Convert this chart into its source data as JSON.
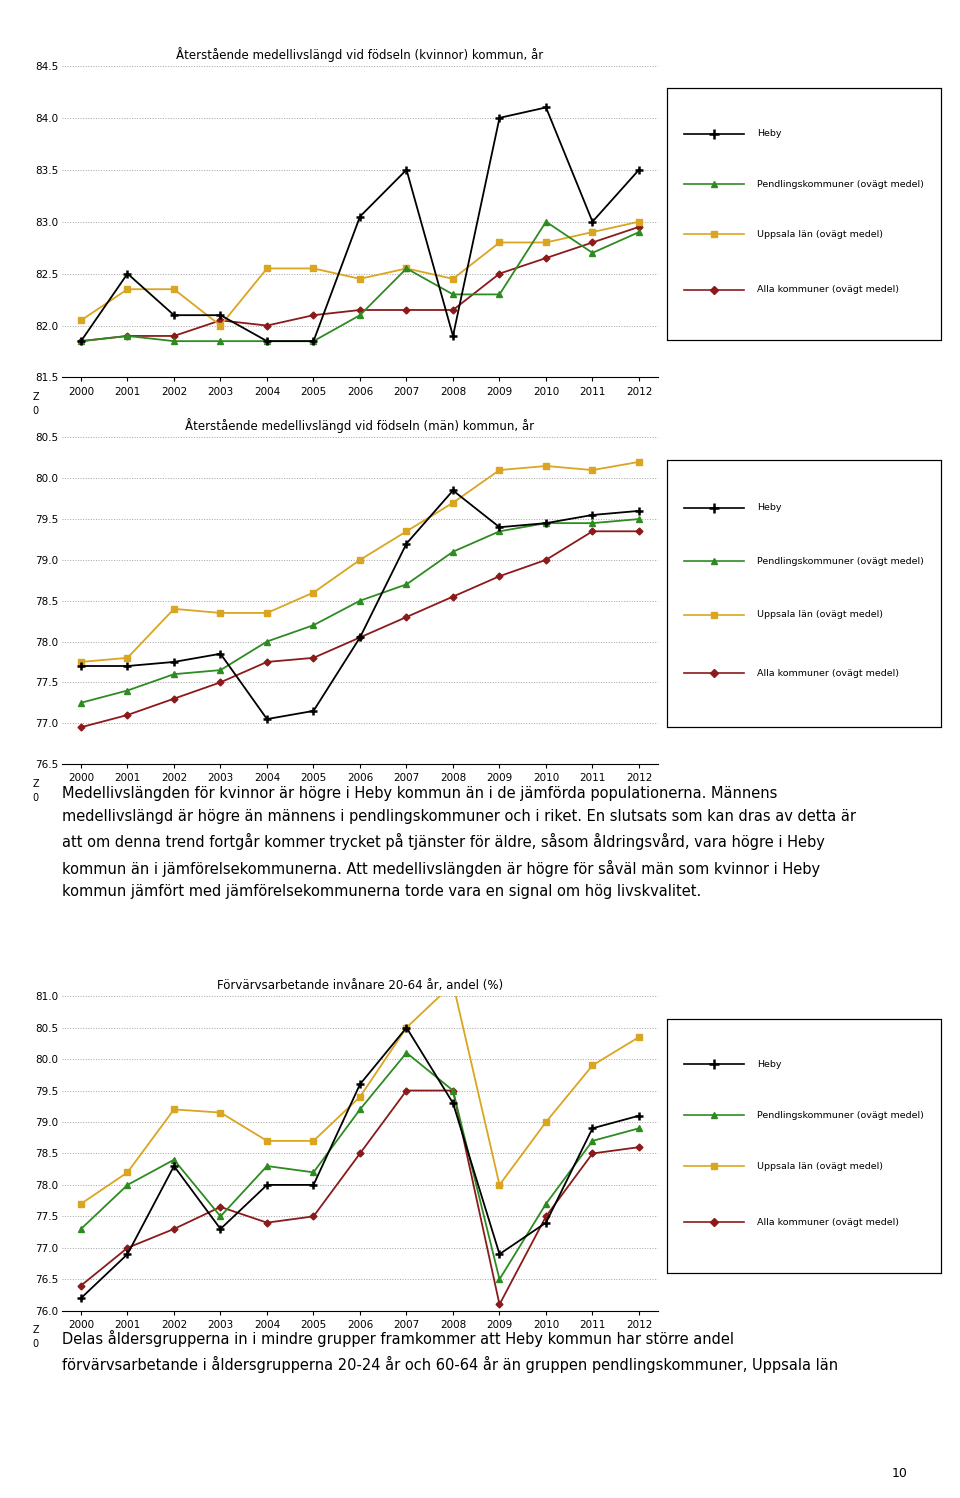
{
  "years": [
    2000,
    2001,
    2002,
    2003,
    2004,
    2005,
    2006,
    2007,
    2008,
    2009,
    2010,
    2011,
    2012
  ],
  "chart1_title": "Återstående medellivslängd vid födseln (kvinnor) kommun, år",
  "chart1_heby": [
    81.85,
    82.5,
    82.1,
    82.1,
    81.85,
    81.85,
    83.05,
    83.5,
    81.9,
    84.0,
    84.1,
    83.0,
    83.5
  ],
  "chart1_pendling": [
    81.85,
    81.9,
    81.85,
    81.85,
    81.85,
    81.85,
    82.1,
    82.55,
    82.3,
    82.3,
    83.0,
    82.7,
    82.9
  ],
  "chart1_uppsala": [
    82.05,
    82.35,
    82.35,
    82.0,
    82.55,
    82.55,
    82.45,
    82.55,
    82.45,
    82.8,
    82.8,
    82.9,
    83.0
  ],
  "chart1_alla": [
    81.85,
    81.9,
    81.9,
    82.05,
    82.0,
    82.1,
    82.15,
    82.15,
    82.15,
    82.5,
    82.65,
    82.8,
    82.95
  ],
  "chart1_ylim": [
    81.5,
    84.5
  ],
  "chart1_yticks": [
    81.5,
    82.0,
    82.5,
    83.0,
    83.5,
    84.0,
    84.5
  ],
  "chart2_title": "Återstående medellivslängd vid födseln (män) kommun, år",
  "chart2_heby": [
    77.7,
    77.7,
    77.75,
    77.85,
    77.05,
    77.15,
    78.05,
    79.2,
    79.85,
    79.4,
    79.45,
    79.55,
    79.6
  ],
  "chart2_pendling": [
    77.25,
    77.4,
    77.6,
    77.65,
    78.0,
    78.2,
    78.5,
    78.7,
    79.1,
    79.35,
    79.45,
    79.45,
    79.5
  ],
  "chart2_uppsala": [
    77.75,
    77.8,
    78.4,
    78.35,
    78.35,
    78.6,
    79.0,
    79.35,
    79.7,
    80.1,
    80.15,
    80.1,
    80.2
  ],
  "chart2_alla": [
    76.95,
    77.1,
    77.3,
    77.5,
    77.75,
    77.8,
    78.05,
    78.3,
    78.55,
    78.8,
    79.0,
    79.35,
    79.35
  ],
  "chart2_ylim": [
    76.5,
    80.5
  ],
  "chart2_yticks": [
    76.5,
    77.0,
    77.5,
    78.0,
    78.5,
    79.0,
    79.5,
    80.0,
    80.5
  ],
  "chart3_title": "Förvärvsarbetande invånare 20-64 år, andel (%)",
  "chart3_heby": [
    76.2,
    76.9,
    78.3,
    77.3,
    78.0,
    78.0,
    79.6,
    80.5,
    79.3,
    76.9,
    77.4,
    78.9,
    79.1
  ],
  "chart3_pendling": [
    77.3,
    78.0,
    78.4,
    77.5,
    78.3,
    78.2,
    79.2,
    80.1,
    79.5,
    76.5,
    77.7,
    78.7,
    78.9
  ],
  "chart3_uppsala": [
    77.7,
    78.2,
    79.2,
    79.15,
    78.7,
    78.7,
    79.4,
    80.5,
    81.2,
    78.0,
    79.0,
    79.9,
    80.35
  ],
  "chart3_alla": [
    76.4,
    77.0,
    77.3,
    77.65,
    77.4,
    77.5,
    78.5,
    79.5,
    79.5,
    76.1,
    77.5,
    78.5,
    78.6
  ],
  "chart3_ylim": [
    76.0,
    81.0
  ],
  "chart3_yticks": [
    76.0,
    76.5,
    77.0,
    77.5,
    78.0,
    78.5,
    79.0,
    79.5,
    80.0,
    80.5,
    81.0
  ],
  "color_heby": "#000000",
  "color_pendling": "#2E8B22",
  "color_uppsala": "#DAA520",
  "color_alla": "#8B1A1A",
  "legend_labels": [
    "Heby",
    "Pendlingskommuner (ovägt medel)",
    "Uppsala län (ovägt medel)",
    "Alla kommuner (ovägt medel)"
  ],
  "text_body": "Medellivslängden för kvinnor är högre i Heby kommun än i de jämförda populationerna. Männens\nmedellivslängd är högre än männens i pendlingskommuner och i riket. En slutsats som kan dras av detta är\natt om denna trend fortgår kommer trycket på tjänster för äldre, såsom åldringsvård, vara högre i Heby\nkommun än i jämförelsekommunerna. Att medellivslängden är högre för såväl män som kvinnor i Heby\nkommun jämfört med jämförelsekommunerna torde vara en signal om hög livskvalitet.",
  "text_body2": "Delas åldersgrupperna in i mindre grupper framkommer att Heby kommun har större andel\nförvärvsarbetande i åldersgrupperna 20-24 år och 60-64 år än gruppen pendlingskommuner, Uppsala län",
  "page_number": "10"
}
